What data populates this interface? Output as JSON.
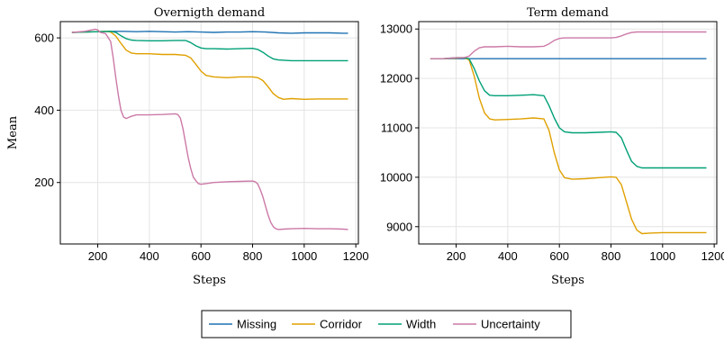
{
  "colors": {
    "Missing": "#1f72b2",
    "Corridor": "#e0a000",
    "Width": "#00a077",
    "Uncertainty": "#cc79a7"
  },
  "legend": {
    "placement": "bottom-center",
    "entries": [
      "Missing",
      "Corridor",
      "Width",
      "Uncertainty"
    ]
  },
  "chart_data": [
    {
      "type": "line",
      "title": "Overnigth demand",
      "xlabel": "Steps",
      "ylabel": "Mean",
      "xlim": [
        55,
        1210
      ],
      "ylim": [
        30,
        645
      ],
      "xticks": [
        200,
        400,
        600,
        800,
        1000,
        1200
      ],
      "yticks": [
        200,
        400,
        600
      ],
      "grid": true,
      "series": [
        {
          "name": "Missing",
          "x": [
            100,
            150,
            200,
            250,
            300,
            350,
            400,
            450,
            500,
            550,
            600,
            650,
            700,
            750,
            800,
            850,
            900,
            950,
            1000,
            1050,
            1100,
            1150,
            1170
          ],
          "values": [
            615,
            616,
            617,
            618,
            618,
            617,
            618,
            617,
            616,
            617,
            616,
            615,
            616,
            616,
            617,
            616,
            614,
            613,
            614,
            614,
            614,
            613,
            613
          ]
        },
        {
          "name": "Corridor",
          "x": [
            100,
            150,
            200,
            230,
            250,
            270,
            290,
            310,
            330,
            350,
            400,
            450,
            500,
            540,
            560,
            580,
            600,
            620,
            650,
            700,
            750,
            800,
            820,
            840,
            860,
            880,
            900,
            920,
            950,
            1000,
            1050,
            1100,
            1150,
            1170
          ],
          "values": [
            615,
            616,
            617,
            618,
            616,
            605,
            585,
            566,
            558,
            556,
            556,
            554,
            554,
            552,
            545,
            527,
            508,
            496,
            492,
            490,
            492,
            492,
            490,
            482,
            465,
            446,
            435,
            430,
            432,
            430,
            431,
            431,
            431,
            431
          ]
        },
        {
          "name": "Width",
          "x": [
            100,
            150,
            200,
            250,
            270,
            290,
            310,
            330,
            350,
            400,
            450,
            500,
            540,
            560,
            580,
            600,
            620,
            650,
            700,
            750,
            800,
            820,
            840,
            860,
            880,
            900,
            950,
            1000,
            1050,
            1100,
            1150,
            1170
          ],
          "values": [
            615,
            616,
            617,
            618,
            615,
            606,
            598,
            594,
            593,
            592,
            592,
            593,
            593,
            587,
            578,
            572,
            570,
            570,
            569,
            570,
            571,
            568,
            560,
            550,
            542,
            539,
            537,
            537,
            537,
            537,
            537,
            537
          ]
        },
        {
          "name": "Uncertainty",
          "x": [
            100,
            150,
            190,
            200,
            210,
            230,
            250,
            260,
            270,
            280,
            290,
            300,
            310,
            330,
            350,
            400,
            450,
            500,
            510,
            520,
            530,
            540,
            550,
            560,
            570,
            580,
            590,
            600,
            620,
            650,
            700,
            750,
            800,
            810,
            820,
            830,
            840,
            850,
            860,
            870,
            880,
            890,
            900,
            920,
            950,
            1000,
            1050,
            1100,
            1150,
            1170
          ],
          "values": [
            615,
            618,
            624,
            622,
            615,
            612,
            590,
            545,
            490,
            440,
            400,
            381,
            377,
            383,
            387,
            387,
            388,
            390,
            388,
            378,
            350,
            310,
            270,
            240,
            215,
            205,
            197,
            195,
            197,
            200,
            202,
            203,
            204,
            202,
            196,
            180,
            160,
            135,
            110,
            90,
            78,
            72,
            70,
            71,
            72,
            73,
            72,
            72,
            71,
            70
          ]
        }
      ]
    },
    {
      "type": "line",
      "title": "Term demand",
      "xlabel": "Steps",
      "ylabel": "",
      "xlim": [
        55,
        1210
      ],
      "ylim": [
        8650,
        13150
      ],
      "xticks": [
        200,
        400,
        600,
        800,
        1000,
        1200
      ],
      "yticks": [
        9000,
        10000,
        11000,
        12000,
        13000
      ],
      "grid": true,
      "series": [
        {
          "name": "Missing",
          "x": [
            100,
            150,
            200,
            250,
            300,
            350,
            400,
            450,
            500,
            550,
            600,
            650,
            700,
            750,
            800,
            850,
            900,
            950,
            1000,
            1050,
            1100,
            1150,
            1170
          ],
          "values": [
            12400,
            12400,
            12400,
            12400,
            12400,
            12400,
            12400,
            12400,
            12400,
            12400,
            12400,
            12400,
            12400,
            12400,
            12400,
            12400,
            12400,
            12400,
            12400,
            12400,
            12400,
            12400,
            12400
          ]
        },
        {
          "name": "Corridor",
          "x": [
            100,
            150,
            200,
            230,
            250,
            270,
            290,
            310,
            330,
            350,
            400,
            450,
            500,
            540,
            560,
            580,
            600,
            620,
            650,
            700,
            750,
            800,
            820,
            840,
            860,
            880,
            900,
            920,
            950,
            1000,
            1050,
            1100,
            1150,
            1170
          ],
          "values": [
            12400,
            12400,
            12410,
            12420,
            12380,
            12050,
            11600,
            11300,
            11180,
            11160,
            11170,
            11180,
            11200,
            11180,
            10950,
            10500,
            10150,
            9990,
            9960,
            9970,
            9990,
            10010,
            10000,
            9850,
            9500,
            9150,
            8930,
            8860,
            8870,
            8880,
            8880,
            8880,
            8880,
            8880
          ]
        },
        {
          "name": "Width",
          "x": [
            100,
            150,
            200,
            230,
            250,
            270,
            290,
            310,
            330,
            350,
            400,
            450,
            500,
            540,
            560,
            580,
            600,
            620,
            650,
            700,
            750,
            800,
            820,
            840,
            860,
            880,
            900,
            920,
            950,
            1000,
            1050,
            1100,
            1150,
            1170
          ],
          "values": [
            12400,
            12400,
            12420,
            12420,
            12400,
            12200,
            11950,
            11750,
            11660,
            11650,
            11650,
            11660,
            11670,
            11650,
            11450,
            11200,
            11000,
            10920,
            10900,
            10900,
            10910,
            10920,
            10910,
            10800,
            10550,
            10320,
            10220,
            10190,
            10190,
            10190,
            10190,
            10190,
            10190,
            10190
          ]
        },
        {
          "name": "Uncertainty",
          "x": [
            100,
            150,
            200,
            230,
            250,
            270,
            290,
            310,
            330,
            350,
            400,
            450,
            500,
            540,
            560,
            580,
            600,
            620,
            650,
            700,
            750,
            800,
            820,
            840,
            860,
            880,
            900,
            920,
            950,
            1000,
            1050,
            1100,
            1150,
            1170
          ],
          "values": [
            12400,
            12400,
            12420,
            12420,
            12450,
            12550,
            12620,
            12640,
            12640,
            12640,
            12650,
            12640,
            12640,
            12650,
            12700,
            12770,
            12810,
            12820,
            12820,
            12820,
            12820,
            12820,
            12830,
            12860,
            12900,
            12930,
            12940,
            12940,
            12940,
            12940,
            12940,
            12940,
            12940,
            12940
          ]
        }
      ]
    }
  ]
}
